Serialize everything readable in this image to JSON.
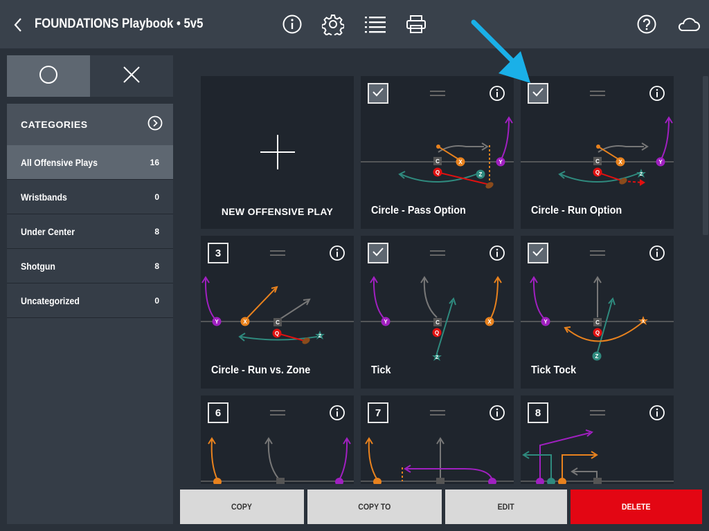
{
  "header": {
    "title": "FOUNDATIONS Playbook • 5v5",
    "icons": [
      "back-chevron-icon",
      "info-icon",
      "gear-icon",
      "list-icon",
      "printer-icon",
      "help-icon",
      "cloud-icon"
    ]
  },
  "sidebar": {
    "segment": {
      "left": "circle-icon",
      "right": "close-icon"
    },
    "categories_label": "CATEGORIES",
    "items": [
      {
        "label": "All Offensive Plays",
        "count": "16",
        "active": true
      },
      {
        "label": "Wristbands",
        "count": "0"
      },
      {
        "label": "Under Center",
        "count": "8"
      },
      {
        "label": "Shotgun",
        "count": "8"
      },
      {
        "label": "Uncategorized",
        "count": "0"
      }
    ]
  },
  "plays": {
    "new_label": "NEW OFFENSIVE PLAY",
    "cards": [
      {
        "name": "Circle - Pass Option",
        "marker": "checked"
      },
      {
        "name": "Circle - Run Option",
        "marker": "checked"
      },
      {
        "name": "Circle - Run vs. Zone",
        "marker": "3"
      },
      {
        "name": "Tick",
        "marker": "checked"
      },
      {
        "name": "Tick Tock",
        "marker": "checked"
      },
      {
        "name": "",
        "marker": "6"
      },
      {
        "name": "",
        "marker": "7"
      },
      {
        "name": "",
        "marker": "8"
      }
    ],
    "player_labels": {
      "center": "C",
      "qb": "Q",
      "x": "X",
      "y": "Y",
      "z": "Z"
    }
  },
  "actions": {
    "copy": "COPY",
    "copy_to": "COPY TO",
    "edit": "EDIT",
    "delete": "DELETE"
  },
  "colors": {
    "header_bg": "#39414b",
    "card_bg": "#1f252d",
    "x_orange": "#e8821e",
    "y_purple": "#a020c0",
    "z_teal": "#2f8a7e",
    "qb_red": "#e01010",
    "center_gray": "#555555",
    "delete_red": "#e30613",
    "annotation_blue": "#1ab0e8"
  }
}
